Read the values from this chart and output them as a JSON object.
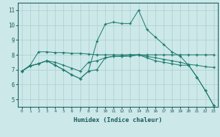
{
  "title": "",
  "xlabel": "Humidex (Indice chaleur)",
  "background_color": "#cce8e8",
  "grid_color": "#aacccc",
  "line_color": "#1a7a6a",
  "xlim": [
    -0.5,
    23.5
  ],
  "ylim": [
    4.5,
    11.5
  ],
  "yticks": [
    5,
    6,
    7,
    8,
    9,
    10,
    11
  ],
  "xticks": [
    0,
    1,
    2,
    3,
    4,
    5,
    6,
    7,
    8,
    9,
    10,
    11,
    12,
    13,
    14,
    15,
    16,
    17,
    18,
    19,
    20,
    21,
    22,
    23
  ],
  "line1_x": [
    0,
    1,
    2,
    3,
    4,
    5,
    6,
    7,
    8,
    9,
    10,
    11,
    12,
    13,
    14,
    15,
    16,
    17,
    18,
    19,
    20,
    21,
    22,
    23
  ],
  "line1_y": [
    6.9,
    7.3,
    8.2,
    8.2,
    8.15,
    8.15,
    8.1,
    8.1,
    8.05,
    8.0,
    8.0,
    8.0,
    8.0,
    8.0,
    8.0,
    8.0,
    8.0,
    8.0,
    8.0,
    8.0,
    8.0,
    8.0,
    8.0,
    8.0
  ],
  "line2_x": [
    0,
    1,
    2,
    3,
    4,
    5,
    6,
    7,
    8,
    9,
    10,
    11,
    12,
    13,
    14,
    15,
    16,
    17,
    18,
    19,
    20,
    21,
    22,
    23
  ],
  "line2_y": [
    6.9,
    7.25,
    7.4,
    7.6,
    7.3,
    7.0,
    6.65,
    6.4,
    6.9,
    7.0,
    7.8,
    7.9,
    7.9,
    8.0,
    8.0,
    7.8,
    7.6,
    7.5,
    7.4,
    7.3,
    7.3,
    6.5,
    5.6,
    4.6
  ],
  "line3_x": [
    0,
    1,
    2,
    3,
    4,
    5,
    6,
    7,
    8,
    9,
    10,
    11,
    12,
    13,
    14,
    15,
    16,
    17,
    18,
    19,
    20,
    21,
    22,
    23
  ],
  "line3_y": [
    6.9,
    7.25,
    7.4,
    7.6,
    7.3,
    7.0,
    6.65,
    6.4,
    6.9,
    8.9,
    10.05,
    10.2,
    10.1,
    10.1,
    11.0,
    9.7,
    9.2,
    8.7,
    8.2,
    7.9,
    7.3,
    6.5,
    5.6,
    4.6
  ],
  "line4_x": [
    0,
    1,
    2,
    3,
    4,
    5,
    6,
    7,
    8,
    9,
    10,
    11,
    12,
    13,
    14,
    15,
    16,
    17,
    18,
    19,
    20,
    21,
    22,
    23
  ],
  "line4_y": [
    6.9,
    7.25,
    7.4,
    7.6,
    7.5,
    7.3,
    7.1,
    6.9,
    7.5,
    7.6,
    7.8,
    7.9,
    7.9,
    7.9,
    8.0,
    7.9,
    7.8,
    7.7,
    7.6,
    7.5,
    7.35,
    7.3,
    7.2,
    7.15
  ]
}
